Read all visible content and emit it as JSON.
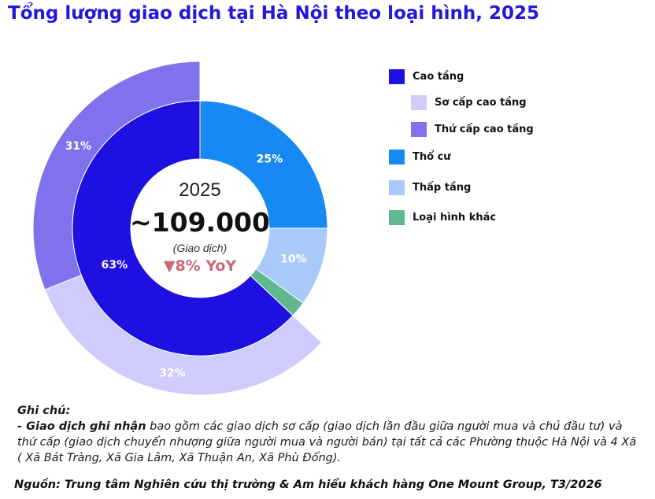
{
  "title": "Tổng lượng giao dịch tại Hà Nội theo loại hình, 2025",
  "center": {
    "year": "2025",
    "total": "~109.000",
    "unit": "(Giao dịch)",
    "yoy": "▼8% YoY"
  },
  "colors": {
    "title": "#2418d8",
    "cao_tang": "#1e10e0",
    "so_cap": "#cfcbfb",
    "thu_cap": "#7f72ec",
    "tho_cu": "#1689f2",
    "thap_tang": "#a9c9f9",
    "khac": "#5fb88f",
    "yoy": "#c96a74"
  },
  "legend": [
    {
      "label": "Cao tầng",
      "color": "#1e10e0",
      "icon": "square-swatch"
    },
    {
      "label": "Sơ cấp cao tầng",
      "color": "#cfcbfb",
      "icon": "square-swatch"
    },
    {
      "label": "Thứ cấp cao tầng",
      "color": "#7f72ec",
      "icon": "square-swatch"
    },
    {
      "label": "Thổ cư",
      "color": "#1689f2",
      "icon": "square-swatch"
    },
    {
      "label": "Thấp tầng",
      "color": "#a9c9f9",
      "icon": "square-swatch"
    },
    {
      "label": "Loại hình khác",
      "color": "#5fb88f",
      "icon": "square-swatch"
    }
  ],
  "notes": {
    "heading": "Ghi chú:",
    "bold_term": "- Giao dịch ghi nhận",
    "text": " bao gồm các giao dịch sơ cấp (giao dịch lần đầu giữa người mua và chủ đầu tư) và thứ cấp (giao dịch chuyển nhượng giữa người mua và người bán) tại tất cả các Phường thuộc Hà Nội và 4 Xã ( Xã Bát Tràng, Xã Gia Lâm, Xã Thuận An, Xã Phù Đổng)."
  },
  "source": "Nguồn: Trung tâm Nghiên cứu thị trường & Am hiểu khách hàng One Mount Group, T3/2026",
  "chart_data": {
    "type": "pie",
    "subtype": "nested-donut",
    "title": "Tổng lượng giao dịch tại Hà Nội theo loại hình, 2025",
    "inner_ring": [
      {
        "name": "Thổ cư",
        "value": 25,
        "label": "25%"
      },
      {
        "name": "Thấp tầng",
        "value": 10,
        "label": "10%"
      },
      {
        "name": "Loại hình khác",
        "value": 2,
        "label": ""
      },
      {
        "name": "Cao tầng",
        "value": 63,
        "label": "63%"
      }
    ],
    "outer_ring": [
      {
        "name": "Sơ cấp cao tầng",
        "value": 32,
        "label": "32%"
      },
      {
        "name": "Thứ cấp cao tầng",
        "value": 31,
        "label": "31%"
      }
    ],
    "legend_position": "right"
  }
}
